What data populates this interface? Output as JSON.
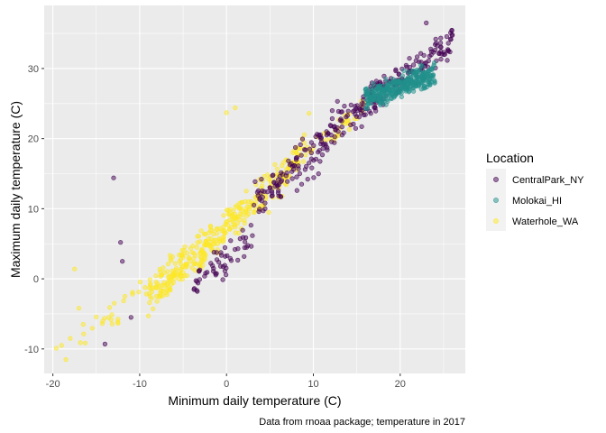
{
  "chart_data": {
    "type": "scatter",
    "title": "",
    "xlabel": "Minimum daily temperature (C)",
    "ylabel": "Maximum daily temperature (C)",
    "caption": "Data from rnoaa package; temperature in 2017",
    "xlim": [
      -21,
      27.5
    ],
    "ylim": [
      -13.5,
      39
    ],
    "x_ticks": [
      -20,
      -10,
      0,
      10,
      20
    ],
    "y_ticks": [
      -10,
      0,
      10,
      20,
      30
    ],
    "x_tick_labels": [
      "-20",
      "-10",
      "0",
      "10",
      "20"
    ],
    "y_tick_labels": [
      "-10",
      "0",
      "10",
      "20",
      "30"
    ],
    "grid": true,
    "legend": {
      "title": "Location",
      "placement": "right"
    },
    "point_alpha": 0.5,
    "series": [
      {
        "name": "CentralPark_NY",
        "color": "#440154",
        "clusters": [
          {
            "x_range": [
              -4,
              3
            ],
            "slope": 1.0,
            "intercept": 3.0,
            "spread": 3.2,
            "n": 55
          },
          {
            "x_range": [
              3,
              12
            ],
            "slope": 1.0,
            "intercept": 7.5,
            "spread": 4.0,
            "n": 110
          },
          {
            "x_range": [
              12,
              19
            ],
            "slope": 1.0,
            "intercept": 9.0,
            "spread": 3.2,
            "n": 100
          },
          {
            "x_range": [
              19,
              26
            ],
            "slope": 0.9,
            "intercept": 10.5,
            "spread": 2.6,
            "n": 90
          }
        ],
        "points": [
          {
            "x": -13,
            "y": 14.4
          },
          {
            "x": -14,
            "y": -9.3
          },
          {
            "x": -12,
            "y": 2.5
          },
          {
            "x": -11,
            "y": -5.5
          },
          {
            "x": 23,
            "y": 36.5
          },
          {
            "x": 26,
            "y": 34.8
          },
          {
            "x": 25.8,
            "y": 34.2
          },
          {
            "x": -12.2,
            "y": 5.2
          }
        ]
      },
      {
        "name": "Molokai_HI",
        "color": "#21908C",
        "clusters": [
          {
            "x_range": [
              16,
              24
            ],
            "slope": 0.45,
            "intercept": 18.5,
            "spread": 2.0,
            "n": 330
          }
        ],
        "points": []
      },
      {
        "name": "Waterhole_WA",
        "color": "#FDE725",
        "clusters": [
          {
            "x_range": [
              -17,
              -9
            ],
            "slope": 1.05,
            "intercept": 8.5,
            "spread": 2.5,
            "n": 25
          },
          {
            "x_range": [
              -9,
              0
            ],
            "slope": 1.05,
            "intercept": 7.0,
            "spread": 3.4,
            "n": 200
          },
          {
            "x_range": [
              0,
              9
            ],
            "slope": 1.15,
            "intercept": 7.5,
            "spread": 3.2,
            "n": 150
          },
          {
            "x_range": [
              9,
              16
            ],
            "slope": 0.9,
            "intercept": 10.0,
            "spread": 2.0,
            "n": 40
          }
        ],
        "points": [
          {
            "x": -19.6,
            "y": -9.9
          },
          {
            "x": -19,
            "y": -9.5
          },
          {
            "x": -18.5,
            "y": -11.5
          },
          {
            "x": -17.5,
            "y": 1.4
          },
          {
            "x": -17,
            "y": -4.2
          },
          {
            "x": -16.5,
            "y": -6.5
          },
          {
            "x": -18,
            "y": -8.5
          },
          {
            "x": 1,
            "y": 24.4
          },
          {
            "x": 0,
            "y": 23.7
          },
          {
            "x": 9.5,
            "y": 23.6
          }
        ]
      }
    ]
  }
}
